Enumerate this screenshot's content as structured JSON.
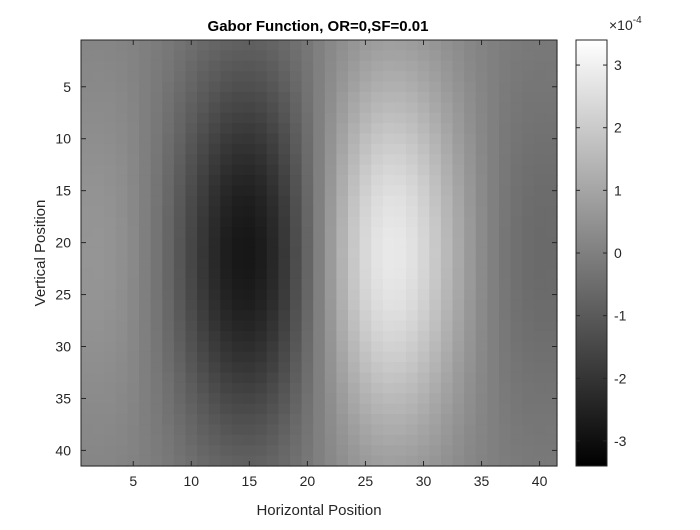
{
  "chart_data": {
    "type": "heatmap",
    "title": "Gabor Function, OR=0,SF=0.01",
    "xlabel": "Horizontal Position",
    "ylabel": "Vertical Position",
    "grid_cols": 41,
    "grid_rows": 41,
    "x_ticks": [
      5,
      10,
      15,
      20,
      25,
      30,
      35,
      40
    ],
    "y_ticks": [
      5,
      10,
      15,
      20,
      25,
      30,
      35,
      40
    ],
    "colormap": "gray",
    "colorbar": {
      "exponent_label": "×10",
      "exponent": "-4",
      "ticks": [
        3,
        2,
        1,
        0,
        -1,
        -2,
        -3
      ],
      "clim": [
        -3.4,
        3.4
      ],
      "unit_scale": 0.0001
    },
    "function": {
      "description": "Gabor",
      "orientation": 0,
      "spatial_frequency": 0.01,
      "center": [
        21,
        21
      ],
      "peak_value": 0.00034,
      "min_value": -0.00034
    }
  }
}
